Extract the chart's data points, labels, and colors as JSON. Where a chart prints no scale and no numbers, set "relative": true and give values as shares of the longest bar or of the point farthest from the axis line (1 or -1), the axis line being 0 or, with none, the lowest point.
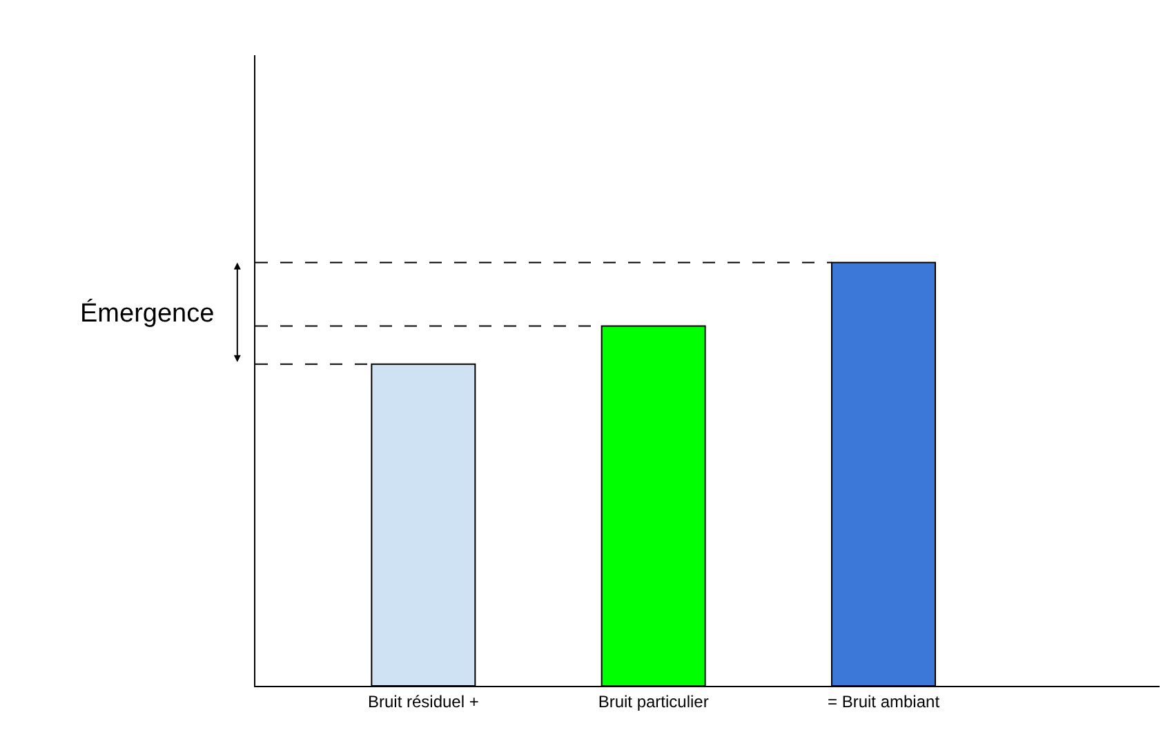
{
  "chart_data": {
    "type": "bar",
    "relative": true,
    "categories": [
      "Bruit résiduel +",
      "Bruit particulier",
      "= Bruit ambiant"
    ],
    "values": [
      0.76,
      0.85,
      1
    ],
    "colors": [
      "#cfe2f3",
      "#00ff00",
      "#3c78d8"
    ],
    "ref_lines": [
      {
        "axis": "y",
        "value": 0.76,
        "line_style": "dashed",
        "color": "#000000"
      },
      {
        "axis": "y",
        "value": 0.85,
        "line_style": "dashed",
        "color": "#000000"
      },
      {
        "axis": "y",
        "value": 1,
        "line_style": "dashed",
        "color": "#000000"
      }
    ],
    "annotations": [
      "Émergence"
    ]
  }
}
